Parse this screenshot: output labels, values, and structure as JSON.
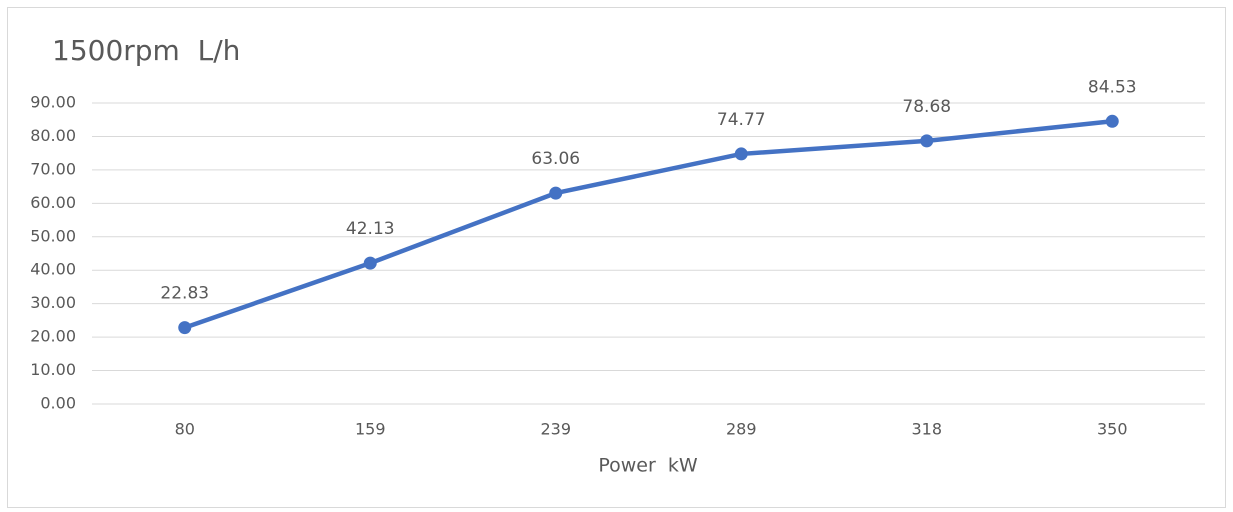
{
  "chart_data": {
    "type": "line",
    "title": "1500rpm  L/h",
    "x_label": "Power  kW",
    "categories": [
      "80",
      "159",
      "239",
      "289",
      "318",
      "350"
    ],
    "series": [
      {
        "name": "L/h",
        "color": "#4472c4",
        "values": [
          22.83,
          42.13,
          63.06,
          74.77,
          78.68,
          84.53
        ]
      }
    ],
    "ylim": [
      0,
      90
    ],
    "yticks": [
      {
        "value": 0,
        "label": "0.00"
      },
      {
        "value": 10,
        "label": "10.00"
      },
      {
        "value": 20,
        "label": "20.00"
      },
      {
        "value": 30,
        "label": "30.00"
      },
      {
        "value": 40,
        "label": "40.00"
      },
      {
        "value": 50,
        "label": "50.00"
      },
      {
        "value": 60,
        "label": "60.00"
      },
      {
        "value": 70,
        "label": "70.00"
      },
      {
        "value": 80,
        "label": "80.00"
      },
      {
        "value": 90,
        "label": "90.00"
      }
    ],
    "grid": true
  }
}
